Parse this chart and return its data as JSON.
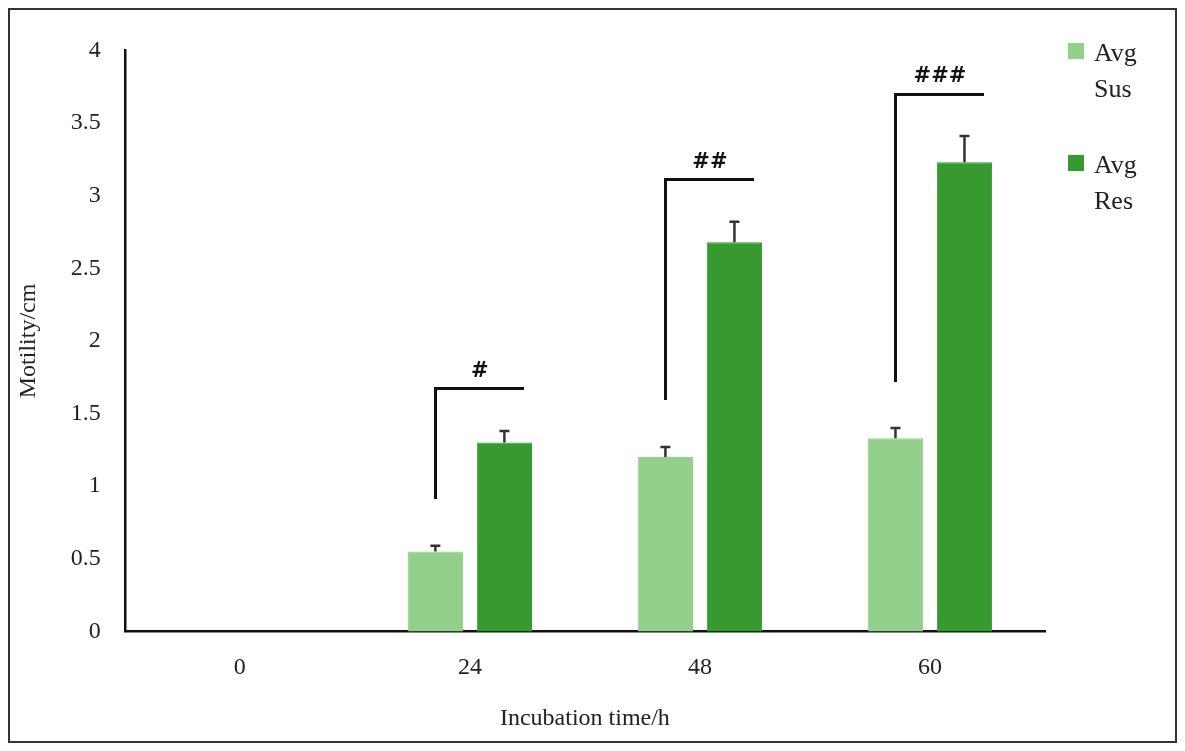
{
  "chart_data": {
    "type": "bar",
    "xlabel": "Incubation time/h",
    "ylabel": "Motility/cm",
    "categories": [
      "0",
      "24",
      "48",
      "60"
    ],
    "series": [
      {
        "name": "Avg Sus",
        "color": "#92d08b",
        "values": [
          0,
          0.55,
          1.2,
          1.33
        ],
        "errors": [
          null,
          0.04,
          0.07,
          0.07
        ]
      },
      {
        "name": "Avg Res",
        "color": "#379a31",
        "values": [
          0,
          1.3,
          2.68,
          3.23
        ],
        "errors": [
          null,
          0.08,
          0.14,
          0.18
        ]
      }
    ],
    "ylim": [
      0,
      4
    ],
    "yticks": [
      0,
      0.5,
      1,
      1.5,
      2,
      2.5,
      3,
      3.5,
      4
    ],
    "annotations": [
      "#",
      "##",
      "###"
    ],
    "grid": false,
    "legend": "right"
  }
}
